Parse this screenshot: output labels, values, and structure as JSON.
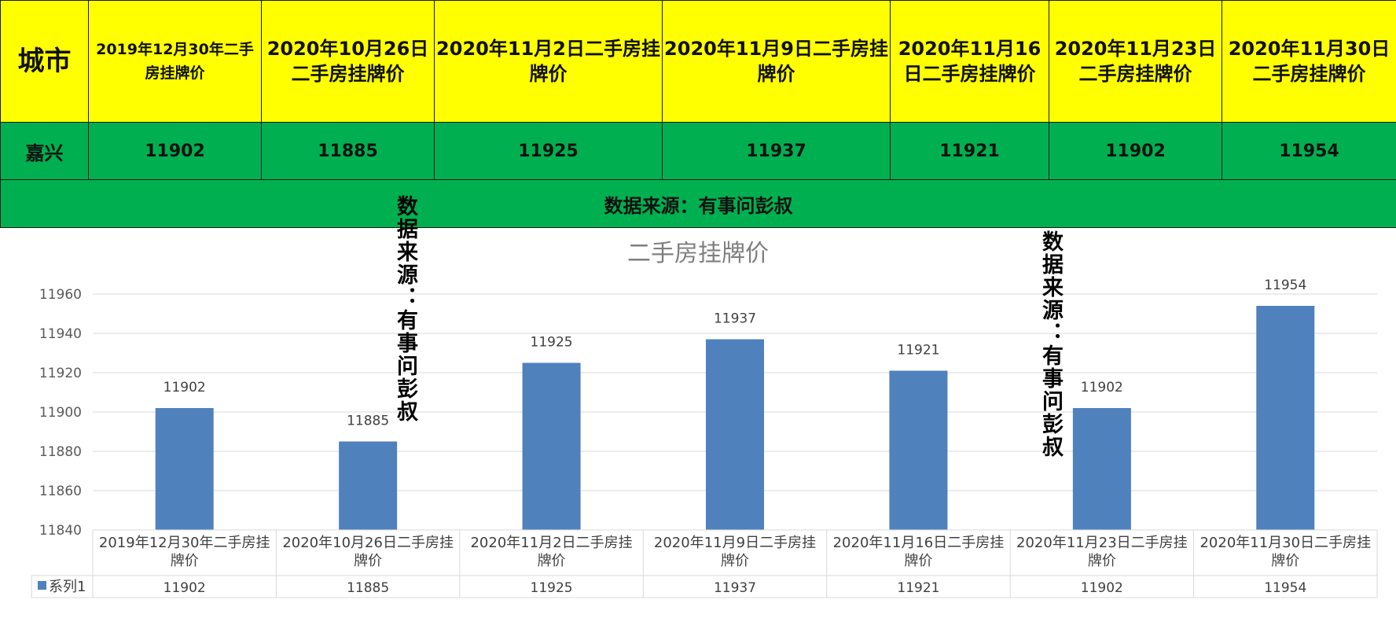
{
  "table": {
    "city_header": "城市",
    "date_headers": [
      "2019年12月30年二手房挂牌价",
      "2020年10月26日二手房挂牌价",
      "2020年11月2日二手房挂牌价",
      "2020年11月9日二手房挂牌价",
      "2020年11月16日二手房挂牌价",
      "2020年11月23日二手房挂牌价",
      "2020年11月30日二手房挂牌价"
    ],
    "city_name": "嘉兴",
    "values": [
      "11902",
      "11885",
      "11925",
      "11937",
      "11921",
      "11902",
      "11954"
    ],
    "source_note": "数据来源：有事问彭叔"
  },
  "watermark_text": "数据来源：有事问彭叔",
  "colors": {
    "header_yellow": "#ffff00",
    "row_green": "#00b050",
    "bar_blue": "#4f81bd"
  },
  "chart_data": {
    "type": "bar",
    "title": "二手房挂牌价",
    "categories": [
      "2019年12月30年二手房挂牌价",
      "2020年10月26日二手房挂牌价",
      "2020年11月2日二手房挂牌价",
      "2020年11月9日二手房挂牌价",
      "2020年11月16日二手房挂牌价",
      "2020年11月23日二手房挂牌价",
      "2020年11月30日二手房挂牌价"
    ],
    "series": [
      {
        "name": "系列1",
        "values": [
          11902,
          11885,
          11925,
          11937,
          11921,
          11902,
          11954
        ]
      }
    ],
    "ylim": [
      11840,
      11960
    ],
    "yticks": [
      11840,
      11860,
      11880,
      11900,
      11920,
      11940,
      11960
    ],
    "grid": true,
    "data_labels": true,
    "data_table": true,
    "legend_placement": "data-table-left"
  }
}
